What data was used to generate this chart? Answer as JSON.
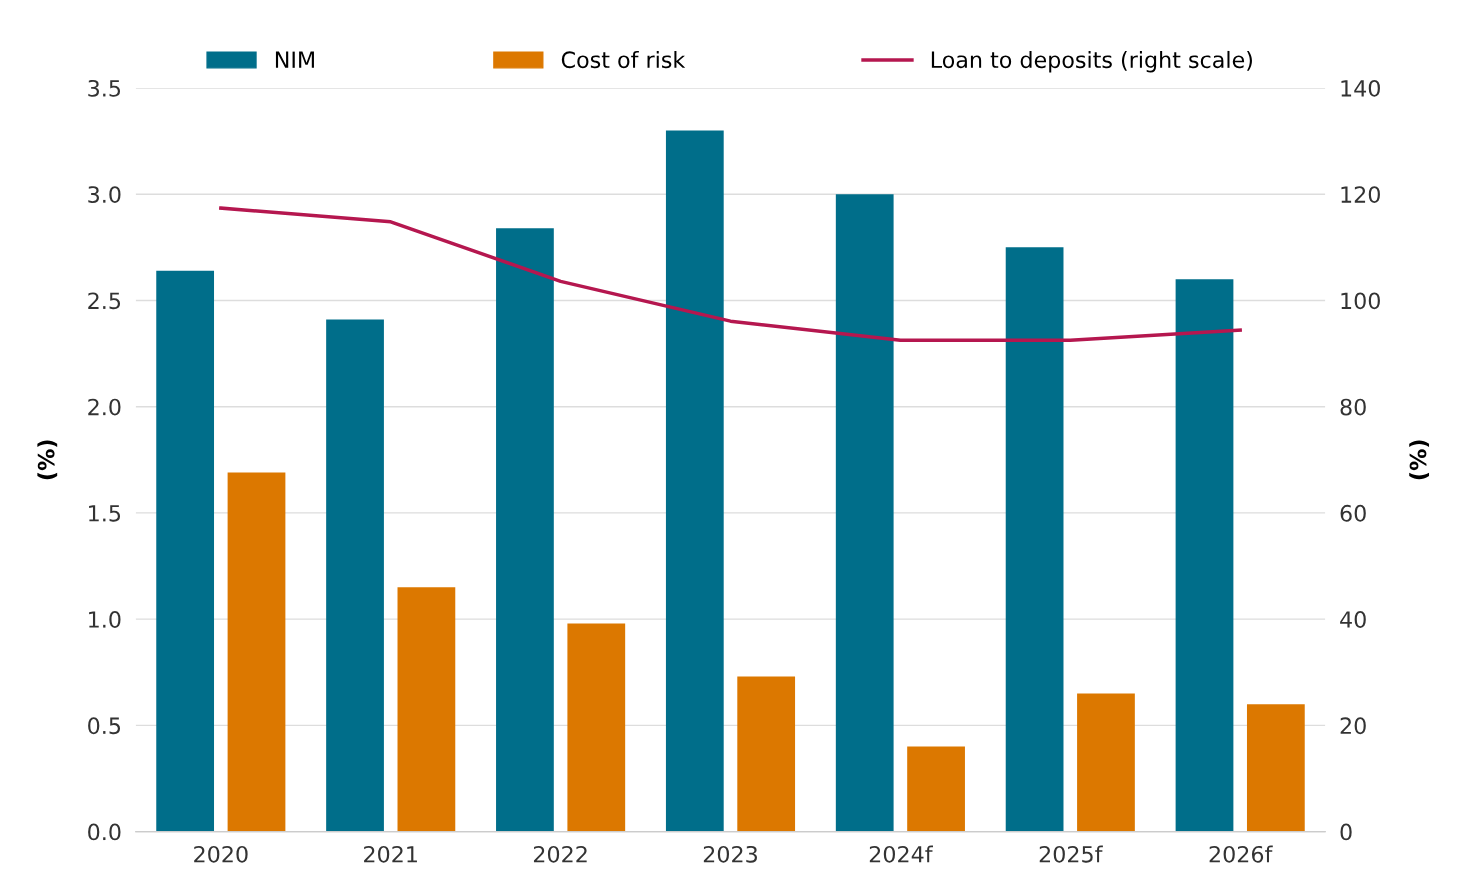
{
  "chart_data": {
    "type": "bar",
    "categories": [
      "2020",
      "2021",
      "2022",
      "2023",
      "2024f",
      "2025f",
      "2026f"
    ],
    "series": [
      {
        "name": "NIM",
        "color": "#006e8a",
        "values": [
          2.64,
          2.41,
          2.84,
          3.3,
          3.0,
          2.75,
          2.6
        ]
      },
      {
        "name": "Cost of risk",
        "color": "#dc7800",
        "values": [
          1.69,
          1.15,
          0.98,
          0.73,
          0.4,
          0.65,
          0.6
        ]
      },
      {
        "name": "Loan to deposits (right scale)",
        "type": "line",
        "axis": "y2",
        "color": "#b5174f",
        "values": [
          117.4,
          114.8,
          103.6,
          96.1,
          92.5,
          92.5,
          94.4
        ]
      }
    ],
    "ylabel": "(%)",
    "y2label": "(%)",
    "ylim": [
      0,
      3.5
    ],
    "yticks": [
      {
        "value": 0,
        "label": "0.0"
      },
      0.5,
      {
        "value": 1,
        "label": "1.0"
      },
      1.5,
      {
        "value": 2,
        "label": "2.0"
      },
      2.5,
      {
        "value": 3,
        "label": "3.0"
      },
      3.5
    ],
    "y2lim": [
      0,
      140
    ],
    "y2ticks": [
      0,
      20,
      40,
      60,
      80,
      100,
      120,
      140
    ],
    "grid": "y",
    "legend": "top"
  }
}
